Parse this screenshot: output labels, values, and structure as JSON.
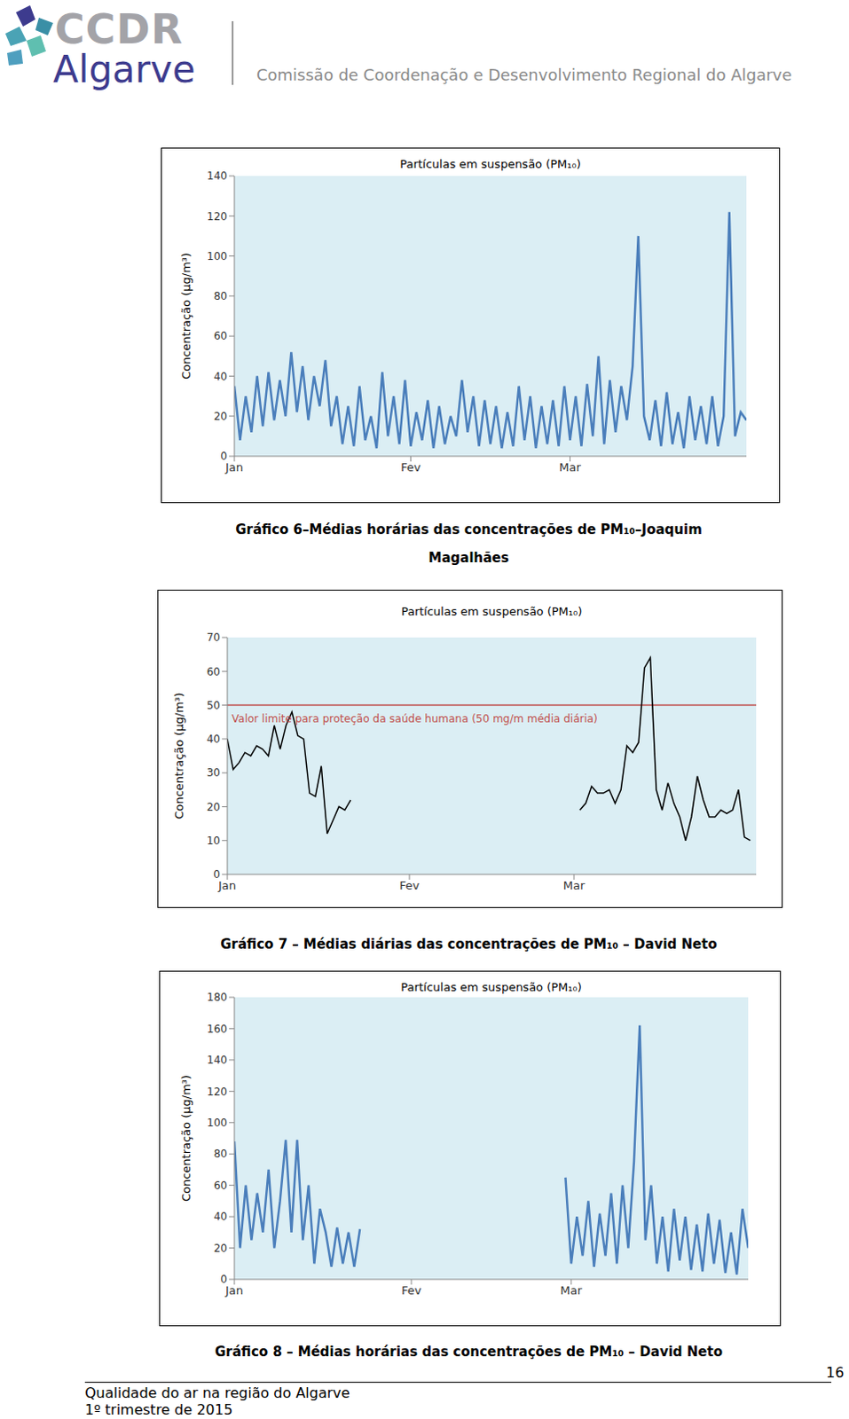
{
  "header": {
    "logo_top": "CCDR",
    "logo_bottom": "Algarve",
    "organization": "Comissão de Coordenação e Desenvolvimento Regional do Algarve"
  },
  "chart_data": [
    {
      "type": "line",
      "title": "Partículas em suspensão (PM₁₀)",
      "caption": [
        "Gráfico 6–Médias horárias das concentrações de PM₁₀–Joaquim",
        "Magalhães"
      ],
      "y_label": "Concentração (µg/m³)",
      "color": "#4a7ebb",
      "grid": false,
      "xlim": [
        0,
        90
      ],
      "xticks": [
        {
          "value": 0,
          "label": "Jan"
        },
        {
          "value": 31,
          "label": "Fev"
        },
        {
          "value": 59,
          "label": "Mar"
        }
      ],
      "ylim": [
        0,
        140
      ],
      "yticks": [
        0,
        20,
        40,
        60,
        80,
        100,
        120,
        140
      ],
      "x": [
        0,
        1,
        2,
        3,
        4,
        5,
        6,
        7,
        8,
        9,
        10,
        11,
        12,
        13,
        14,
        15,
        16,
        17,
        18,
        19,
        20,
        21,
        22,
        23,
        24,
        25,
        26,
        27,
        28,
        29,
        30,
        31,
        32,
        33,
        34,
        35,
        36,
        37,
        38,
        39,
        40,
        41,
        42,
        43,
        44,
        45,
        46,
        47,
        48,
        49,
        50,
        51,
        52,
        53,
        54,
        55,
        56,
        57,
        58,
        59,
        60,
        61,
        62,
        63,
        64,
        65,
        66,
        67,
        68,
        69,
        70,
        71,
        72,
        73,
        74,
        75,
        76,
        77,
        78,
        79,
        80,
        81,
        82,
        83,
        84,
        85,
        86,
        87,
        88,
        89,
        90
      ],
      "values": [
        35,
        8,
        30,
        12,
        40,
        15,
        42,
        18,
        38,
        20,
        52,
        22,
        45,
        18,
        40,
        25,
        48,
        15,
        30,
        6,
        25,
        5,
        35,
        8,
        20,
        4,
        42,
        10,
        30,
        6,
        38,
        5,
        22,
        8,
        28,
        4,
        25,
        6,
        20,
        10,
        38,
        12,
        30,
        5,
        28,
        6,
        25,
        4,
        22,
        5,
        35,
        8,
        30,
        4,
        25,
        6,
        28,
        5,
        35,
        8,
        30,
        5,
        36,
        10,
        50,
        6,
        38,
        12,
        35,
        18,
        45,
        110,
        20,
        8,
        28,
        5,
        32,
        6,
        22,
        4,
        30,
        8,
        25,
        6,
        30,
        5,
        20,
        122,
        10,
        22,
        18
      ]
    },
    {
      "type": "line",
      "title": "Partículas em suspensão (PM₁₀)",
      "caption": [
        "Gráfico 7 – Médias diárias das concentrações de PM₁₀ – David Neto"
      ],
      "y_label": "Concentração (µg/m³)",
      "color": "#000000",
      "grid": false,
      "xlim": [
        0,
        90
      ],
      "xticks": [
        {
          "value": 0,
          "label": "Jan"
        },
        {
          "value": 31,
          "label": "Fev"
        },
        {
          "value": 59,
          "label": "Mar"
        }
      ],
      "ylim": [
        0,
        70
      ],
      "yticks": [
        0,
        10,
        20,
        30,
        40,
        50,
        60,
        70
      ],
      "annotations": [
        {
          "y": 50,
          "text": "Valor limite para proteção da saúde humana (50 mg/m média diária)",
          "color": "#c0504d"
        }
      ],
      "x": [
        0,
        1,
        2,
        3,
        4,
        5,
        6,
        7,
        8,
        9,
        10,
        11,
        12,
        13,
        14,
        15,
        16,
        17,
        18,
        19,
        20,
        21,
        40,
        60,
        61,
        62,
        63,
        64,
        65,
        66,
        67,
        68,
        69,
        70,
        71,
        72,
        73,
        74,
        75,
        76,
        77,
        78,
        79,
        80,
        81,
        82,
        83,
        84,
        85,
        86,
        87,
        88,
        89
      ],
      "values": [
        40,
        31,
        33,
        36,
        35,
        38,
        37,
        35,
        44,
        37,
        44,
        48,
        41,
        40,
        24,
        23,
        32,
        12,
        16,
        20,
        19,
        22,
        null,
        19,
        21,
        26,
        24,
        24,
        25,
        21,
        25,
        38,
        36,
        39,
        61,
        64,
        25,
        19,
        27,
        21,
        17,
        10,
        17,
        29,
        22,
        17,
        17,
        19,
        18,
        19,
        25,
        11,
        10
      ]
    },
    {
      "type": "line",
      "title": "Partículas em suspensão (PM₁₀)",
      "caption": [
        "Gráfico 8 – Médias horárias das concentrações de PM₁₀ – David Neto"
      ],
      "y_label": "Concentração (µg/m³)",
      "color": "#4a7ebb",
      "grid": false,
      "xlim": [
        0,
        90
      ],
      "xticks": [
        {
          "value": 0,
          "label": "Jan"
        },
        {
          "value": 31,
          "label": "Fev"
        },
        {
          "value": 59,
          "label": "Mar"
        }
      ],
      "ylim": [
        0,
        180
      ],
      "yticks": [
        0,
        20,
        40,
        60,
        80,
        100,
        120,
        140,
        160,
        180
      ],
      "x": [
        0,
        1,
        2,
        3,
        4,
        5,
        6,
        7,
        8,
        9,
        10,
        11,
        12,
        13,
        14,
        15,
        16,
        17,
        18,
        19,
        20,
        21,
        22,
        40,
        58,
        59,
        60,
        61,
        62,
        63,
        64,
        65,
        66,
        67,
        68,
        69,
        70,
        71,
        72,
        73,
        74,
        75,
        76,
        77,
        78,
        79,
        80,
        81,
        82,
        83,
        84,
        85,
        86,
        87,
        88,
        89,
        90
      ],
      "values": [
        88,
        20,
        60,
        25,
        55,
        30,
        70,
        20,
        50,
        89,
        30,
        89,
        25,
        60,
        10,
        45,
        30,
        8,
        33,
        10,
        30,
        8,
        32,
        null,
        65,
        10,
        40,
        15,
        50,
        8,
        42,
        15,
        55,
        10,
        60,
        20,
        75,
        162,
        25,
        60,
        10,
        40,
        5,
        45,
        12,
        40,
        6,
        35,
        5,
        42,
        10,
        38,
        4,
        30,
        3,
        45,
        20
      ]
    }
  ],
  "footer": {
    "left": [
      "Qualidade do ar na região do Algarve",
      "1º trimestre de 2015"
    ],
    "page": "16"
  }
}
